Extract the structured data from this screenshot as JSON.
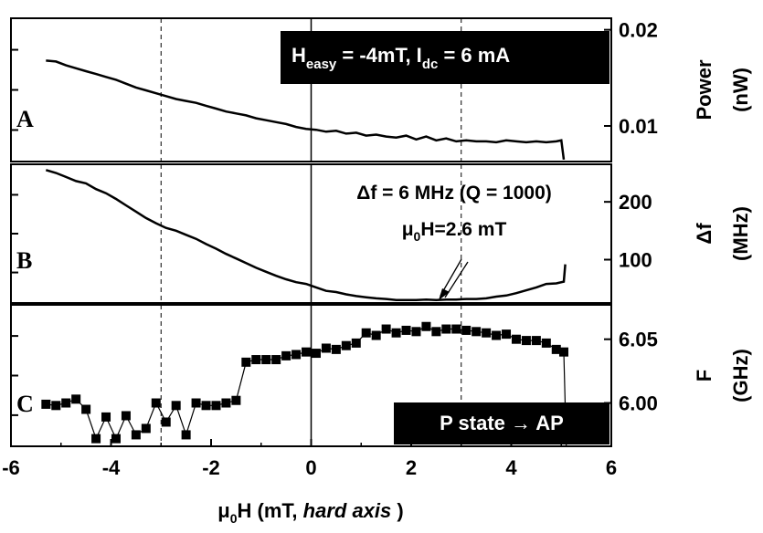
{
  "chart_data": [
    {
      "panel": "A",
      "type": "line",
      "ylabel": "Power\n(nW)",
      "y_ticks": [
        "0.02",
        "0.01"
      ],
      "y_tick_values": [
        0.02,
        0.01
      ],
      "ylim": [
        0.0063,
        0.0212
      ],
      "xlim": [
        -6,
        6
      ],
      "annotation": "H_easy = -4mT, I_dc = 6 mA",
      "annotation_main": "H",
      "annotation_sub": "easy",
      "annotation_mid": " = -4mT, I",
      "annotation_sub2": "dc",
      "annotation_tail": " = 6 mA",
      "x": [
        -5.3,
        -5.1,
        -4.9,
        -4.7,
        -4.5,
        -4.3,
        -4.1,
        -3.9,
        -3.7,
        -3.5,
        -3.3,
        -3.1,
        -2.9,
        -2.7,
        -2.5,
        -2.3,
        -2.1,
        -1.9,
        -1.7,
        -1.5,
        -1.3,
        -1.1,
        -0.9,
        -0.7,
        -0.5,
        -0.3,
        -0.1,
        0.1,
        0.3,
        0.5,
        0.7,
        0.9,
        1.1,
        1.3,
        1.5,
        1.7,
        1.9,
        2.1,
        2.3,
        2.5,
        2.7,
        2.9,
        3.1,
        3.3,
        3.5,
        3.7,
        3.9,
        4.1,
        4.3,
        4.5,
        4.7,
        4.9,
        5.0,
        5.05
      ],
      "y": [
        0.0168,
        0.0167,
        0.0163,
        0.016,
        0.0157,
        0.0154,
        0.0151,
        0.0148,
        0.0144,
        0.014,
        0.0137,
        0.0134,
        0.0131,
        0.0128,
        0.0126,
        0.0124,
        0.0121,
        0.0118,
        0.0115,
        0.0113,
        0.0111,
        0.0108,
        0.0106,
        0.0104,
        0.0102,
        0.0099,
        0.0097,
        0.0096,
        0.0094,
        0.0095,
        0.0092,
        0.0093,
        0.009,
        0.0091,
        0.0089,
        0.0088,
        0.009,
        0.0086,
        0.0089,
        0.0085,
        0.0087,
        0.0084,
        0.0085,
        0.0084,
        0.0084,
        0.0083,
        0.0085,
        0.0084,
        0.0083,
        0.0084,
        0.0083,
        0.0084,
        0.0085,
        0.0065
      ]
    },
    {
      "panel": "B",
      "type": "line",
      "ylabel": "Δf\n(MHz)",
      "y_ticks": [
        "200",
        "100"
      ],
      "y_tick_values": [
        200,
        100
      ],
      "ylim": [
        25,
        265
      ],
      "xlim": [
        -6,
        6
      ],
      "annotation1": "Δf = 6 MHz (Q = 1000)",
      "annotation2_main": "μ",
      "annotation2_sub": "0",
      "annotation2_tail": "H=2.6 mT",
      "x": [
        -5.3,
        -5.1,
        -4.9,
        -4.7,
        -4.5,
        -4.3,
        -4.1,
        -3.9,
        -3.7,
        -3.5,
        -3.3,
        -3.1,
        -2.9,
        -2.7,
        -2.5,
        -2.3,
        -2.1,
        -1.9,
        -1.7,
        -1.5,
        -1.3,
        -1.1,
        -0.9,
        -0.7,
        -0.5,
        -0.3,
        -0.1,
        0.1,
        0.3,
        0.5,
        0.7,
        0.9,
        1.1,
        1.3,
        1.5,
        1.7,
        1.9,
        2.1,
        2.3,
        2.5,
        2.7,
        2.9,
        3.1,
        3.3,
        3.5,
        3.7,
        3.9,
        4.1,
        4.3,
        4.5,
        4.7,
        4.9,
        5.05,
        5.08
      ],
      "y": [
        255,
        250,
        243,
        236,
        232,
        222,
        215,
        205,
        194,
        183,
        172,
        163,
        155,
        150,
        143,
        136,
        127,
        119,
        110,
        102,
        94,
        86,
        79,
        72,
        66,
        61,
        58,
        52,
        46,
        44,
        40,
        37,
        35,
        33,
        32,
        30,
        30,
        30,
        31,
        30,
        31,
        31,
        32,
        32,
        33,
        36,
        38,
        42,
        47,
        52,
        58,
        59,
        62,
        92
      ]
    },
    {
      "panel": "C",
      "type": "scatter-line",
      "ylabel": "F\n(GHz)",
      "y_ticks": [
        "6.05",
        "6.00"
      ],
      "y_tick_values": [
        6.05,
        6.0
      ],
      "ylim": [
        5.966,
        6.077
      ],
      "xlim": [
        -6,
        6
      ],
      "xlabel_main": "μ",
      "xlabel_sub": "0",
      "xlabel_mid": "H (mT, ",
      "xlabel_italic": "hard axis",
      "xlabel_tail": " )",
      "x_ticks": [
        "-6",
        "-4",
        "-2",
        "0",
        "2",
        "4",
        "6"
      ],
      "x_tick_values": [
        -6,
        -4,
        -2,
        0,
        2,
        4,
        6
      ],
      "annotation": "P state → AP",
      "x": [
        -5.3,
        -5.1,
        -4.9,
        -4.7,
        -4.5,
        -4.3,
        -4.1,
        -3.9,
        -3.7,
        -3.5,
        -3.3,
        -3.1,
        -2.9,
        -2.7,
        -2.5,
        -2.3,
        -2.1,
        -1.9,
        -1.7,
        -1.5,
        -1.3,
        -1.1,
        -0.9,
        -0.7,
        -0.5,
        -0.3,
        -0.1,
        0.1,
        0.3,
        0.5,
        0.7,
        0.9,
        1.1,
        1.3,
        1.5,
        1.7,
        1.9,
        2.1,
        2.3,
        2.5,
        2.7,
        2.9,
        3.1,
        3.3,
        3.5,
        3.7,
        3.9,
        4.1,
        4.3,
        4.5,
        4.7,
        4.9,
        5.05,
        5.1
      ],
      "y": [
        5.999,
        5.998,
        6.0,
        6.003,
        5.995,
        5.972,
        5.989,
        5.972,
        5.99,
        5.975,
        5.98,
        6.0,
        5.985,
        5.998,
        5.975,
        6.0,
        5.998,
        5.998,
        6.0,
        6.002,
        6.032,
        6.034,
        6.034,
        6.034,
        6.037,
        6.038,
        6.04,
        6.039,
        6.043,
        6.042,
        6.045,
        6.047,
        6.055,
        6.053,
        6.058,
        6.055,
        6.057,
        6.056,
        6.06,
        6.056,
        6.058,
        6.058,
        6.057,
        6.056,
        6.055,
        6.053,
        6.054,
        6.05,
        6.049,
        6.049,
        6.047,
        6.042,
        6.04,
        5.966
      ]
    }
  ]
}
